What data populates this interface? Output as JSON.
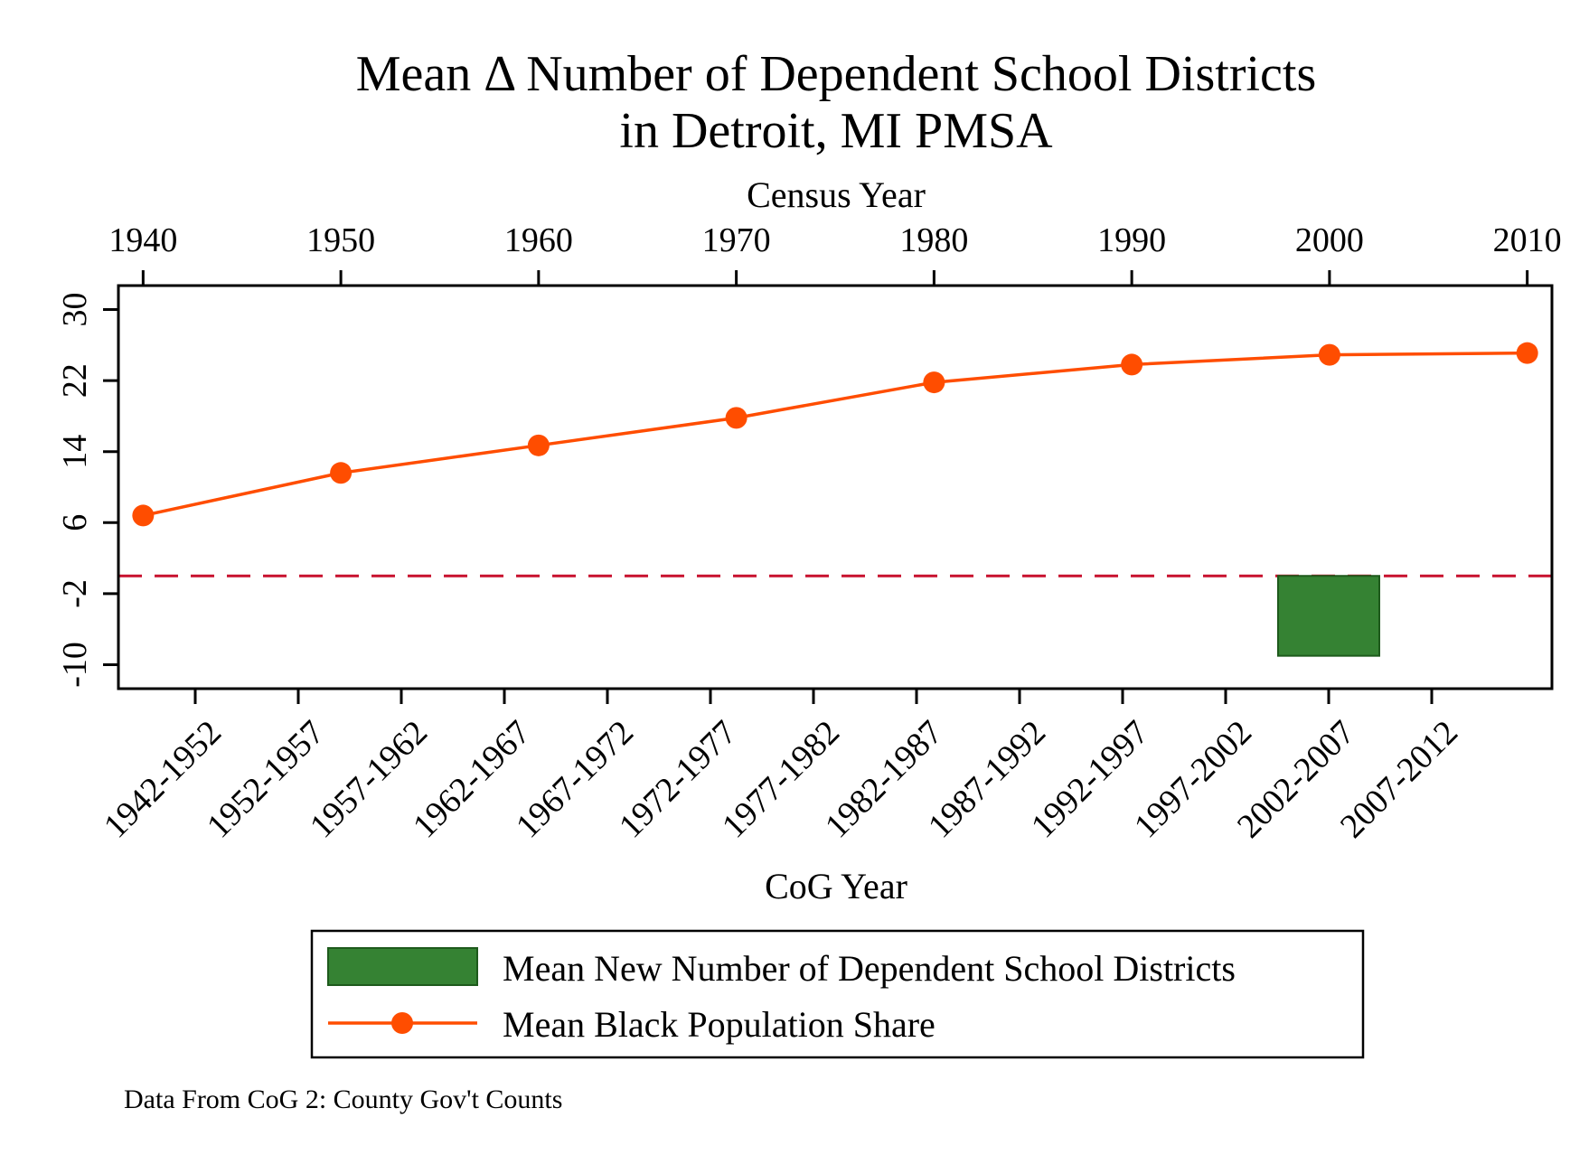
{
  "chart_data": {
    "type": "bar+line",
    "title": [
      "Mean Δ Number of Dependent School Districts",
      "in Detroit, MI PMSA"
    ],
    "top_axis": {
      "label": "Census Year",
      "ticks": [
        "1940",
        "1950",
        "1960",
        "1970",
        "1980",
        "1990",
        "2000",
        "2010"
      ],
      "range": [
        1938.75,
        2011.25
      ]
    },
    "bottom_axis": {
      "label": "CoG Year",
      "categories": [
        "1942-1952",
        "1952-1957",
        "1957-1962",
        "1962-1967",
        "1967-1972",
        "1972-1977",
        "1977-1982",
        "1982-1987",
        "1987-1992",
        "1992-1997",
        "1997-2002",
        "2002-2007",
        "2007-2012"
      ]
    },
    "y_axis": {
      "ticks": [
        "30",
        "22",
        "14",
        "6",
        "-2",
        "-10"
      ],
      "range": [
        -12.7,
        32.7
      ]
    },
    "reference_line": {
      "y": 0,
      "style": "dashed",
      "color": "#c8102e"
    },
    "series": [
      {
        "name": "Mean New Number of Dependent School Districts",
        "type": "bar",
        "color": "#358233",
        "bars": [
          {
            "category": "2002-2007",
            "value": -9
          }
        ]
      },
      {
        "name": "Mean Black Population Share",
        "type": "line",
        "color": "#ff4d00",
        "x": [
          1940,
          1950,
          1960,
          1970,
          1980,
          1990,
          2000,
          2010
        ],
        "y": [
          6.8,
          11.6,
          14.7,
          17.8,
          21.8,
          23.8,
          24.9,
          25.1
        ]
      }
    ],
    "legend": {
      "placement": "bottom"
    },
    "note": "Data From CoG 2: County Gov't Counts"
  }
}
